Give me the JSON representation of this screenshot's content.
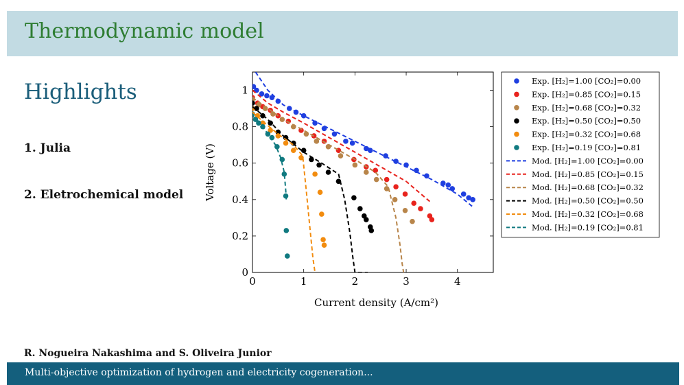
{
  "slide": {
    "title": "Thermodynamic model",
    "section_heading": "Highlights",
    "list": [
      "1. Julia",
      "2. Eletrochemical model"
    ],
    "authors": "R. Nogueira Nakashima and S. Oliveira Junior",
    "footer": "Multi-objective optimization of hydrogen and electricity cogeneration..."
  },
  "colors": {
    "header_bg": "#c2dbe3",
    "title": "#2e7d32",
    "heading": "#1b5e7a",
    "footer_bg": "#145f7d"
  },
  "chart_data": {
    "type": "scatter",
    "xlabel": "Current density (A/cm²)",
    "ylabel": "Voltage (V)",
    "xlim": [
      0,
      4.7
    ],
    "ylim": [
      0,
      1.1
    ],
    "xticks": [
      0,
      1,
      2,
      3,
      4
    ],
    "yticks": [
      0,
      0.2,
      0.4,
      0.6,
      0.8,
      1
    ],
    "ytick_labels": [
      "0",
      "0.2",
      "0.4",
      "0.6",
      "0.8",
      "1"
    ],
    "grid": false,
    "legend_position": "outside-right",
    "series": [
      {
        "name": "Exp. [H₂]=1.00 [CO₂]=0.00",
        "kind": "exp",
        "color": "#1f3fe0",
        "x": [
          0.02,
          0.08,
          0.18,
          0.28,
          0.38,
          0.5,
          0.72,
          0.85,
          1.0,
          1.22,
          1.4,
          1.6,
          1.82,
          1.95,
          2.22,
          2.3,
          2.6,
          2.8,
          3.0,
          3.2,
          3.4,
          3.72,
          3.82,
          3.9,
          4.12,
          4.22,
          4.3
        ],
        "y": [
          1.02,
          1.0,
          0.98,
          0.97,
          0.96,
          0.94,
          0.9,
          0.88,
          0.86,
          0.82,
          0.79,
          0.76,
          0.72,
          0.71,
          0.68,
          0.67,
          0.64,
          0.61,
          0.59,
          0.56,
          0.53,
          0.49,
          0.48,
          0.46,
          0.43,
          0.41,
          0.4
        ]
      },
      {
        "name": "Exp. [H₂]=0.85 [CO₂]=0.15",
        "kind": "exp",
        "color": "#e8231d",
        "x": [
          0.0,
          0.1,
          0.2,
          0.35,
          0.5,
          0.7,
          0.95,
          1.2,
          1.4,
          1.68,
          1.98,
          2.22,
          2.4,
          2.62,
          2.8,
          2.98,
          3.15,
          3.28,
          3.46,
          3.5
        ],
        "y": [
          0.96,
          0.93,
          0.91,
          0.89,
          0.86,
          0.83,
          0.78,
          0.75,
          0.72,
          0.67,
          0.62,
          0.58,
          0.56,
          0.51,
          0.47,
          0.43,
          0.38,
          0.35,
          0.31,
          0.29
        ]
      },
      {
        "name": "Exp. [H₂]=0.68 [CO₂]=0.32",
        "kind": "exp",
        "color": "#b8854a",
        "x": [
          0.0,
          0.12,
          0.25,
          0.4,
          0.58,
          0.8,
          1.05,
          1.25,
          1.48,
          1.72,
          2.0,
          2.22,
          2.42,
          2.62,
          2.78,
          2.98,
          3.12
        ],
        "y": [
          0.95,
          0.92,
          0.9,
          0.87,
          0.84,
          0.8,
          0.76,
          0.72,
          0.69,
          0.64,
          0.59,
          0.55,
          0.51,
          0.46,
          0.4,
          0.34,
          0.28
        ]
      },
      {
        "name": "Exp. [H₂]=0.50 [CO₂]=0.50",
        "kind": "exp",
        "color": "#000000",
        "x": [
          0.0,
          0.08,
          0.2,
          0.35,
          0.5,
          0.65,
          0.8,
          1.0,
          1.15,
          1.3,
          1.48,
          1.68,
          1.98,
          2.1,
          2.18,
          2.22,
          2.3,
          2.32
        ],
        "y": [
          0.93,
          0.9,
          0.86,
          0.82,
          0.77,
          0.74,
          0.71,
          0.67,
          0.62,
          0.59,
          0.55,
          0.5,
          0.41,
          0.35,
          0.31,
          0.29,
          0.25,
          0.23
        ]
      },
      {
        "name": "Exp. [H₂]=0.32 [CO₂]=0.68",
        "kind": "exp",
        "color": "#f28c0f",
        "x": [
          0.0,
          0.1,
          0.2,
          0.35,
          0.5,
          0.65,
          0.8,
          0.95,
          1.22,
          1.32,
          1.35,
          1.38,
          1.4
        ],
        "y": [
          0.9,
          0.86,
          0.82,
          0.78,
          0.75,
          0.71,
          0.67,
          0.63,
          0.54,
          0.44,
          0.32,
          0.18,
          0.15
        ]
      },
      {
        "name": "Exp. [H₂]=0.19 [CO₂]=0.81",
        "kind": "exp",
        "color": "#117a80",
        "x": [
          0.0,
          0.06,
          0.12,
          0.2,
          0.3,
          0.38,
          0.48,
          0.58,
          0.62,
          0.65,
          0.66,
          0.68
        ],
        "y": [
          0.87,
          0.84,
          0.82,
          0.8,
          0.76,
          0.74,
          0.69,
          0.62,
          0.54,
          0.42,
          0.23,
          0.09
        ]
      },
      {
        "name": "Mod. [H₂]=1.00 [CO₂]=0.00",
        "kind": "mod",
        "color": "#1f3fe0",
        "x": [
          0.06,
          0.3,
          0.6,
          1.0,
          1.5,
          2.0,
          2.5,
          3.0,
          3.5,
          4.0,
          4.3
        ],
        "y": [
          1.1,
          1.0,
          0.92,
          0.86,
          0.79,
          0.72,
          0.65,
          0.58,
          0.51,
          0.43,
          0.36
        ]
      },
      {
        "name": "Mod. [H₂]=0.85 [CO₂]=0.15",
        "kind": "mod",
        "color": "#e8231d",
        "x": [
          0.0,
          0.3,
          0.6,
          1.0,
          1.5,
          2.0,
          2.5,
          3.0,
          3.5
        ],
        "y": [
          1.0,
          0.93,
          0.88,
          0.82,
          0.74,
          0.66,
          0.58,
          0.5,
          0.38
        ]
      },
      {
        "name": "Mod. [H₂]=0.68 [CO₂]=0.32",
        "kind": "mod",
        "color": "#b8854a",
        "x": [
          0.0,
          0.3,
          0.6,
          1.0,
          1.5,
          2.0,
          2.4,
          2.65,
          2.8,
          2.88,
          2.92,
          2.95
        ],
        "y": [
          0.96,
          0.9,
          0.84,
          0.78,
          0.7,
          0.62,
          0.55,
          0.47,
          0.3,
          0.15,
          0.05,
          0.0
        ]
      },
      {
        "name": "Mod. [H₂]=0.50 [CO₂]=0.50",
        "kind": "mod",
        "color": "#000000",
        "x": [
          0.0,
          0.3,
          0.6,
          1.0,
          1.35,
          1.68,
          1.8,
          1.9,
          1.96,
          2.0,
          2.1,
          2.25
        ],
        "y": [
          0.91,
          0.84,
          0.75,
          0.66,
          0.6,
          0.54,
          0.4,
          0.22,
          0.08,
          0.0,
          0.0,
          0.0
        ]
      },
      {
        "name": "Mod. [H₂]=0.32 [CO₂]=0.68",
        "kind": "mod",
        "color": "#f28c0f",
        "x": [
          0.0,
          0.2,
          0.5,
          0.8,
          0.98,
          1.05,
          1.12,
          1.18,
          1.22
        ],
        "y": [
          0.88,
          0.83,
          0.76,
          0.7,
          0.64,
          0.45,
          0.25,
          0.08,
          0.0
        ]
      },
      {
        "name": "Mod. [H₂]=0.19 [CO₂]=0.81",
        "kind": "mod",
        "color": "#117a80",
        "x": [
          0.0,
          0.15,
          0.3,
          0.45,
          0.55,
          0.62,
          0.65,
          0.66
        ],
        "y": [
          0.86,
          0.82,
          0.76,
          0.7,
          0.63,
          0.55,
          0.45,
          0.4
        ]
      }
    ]
  }
}
